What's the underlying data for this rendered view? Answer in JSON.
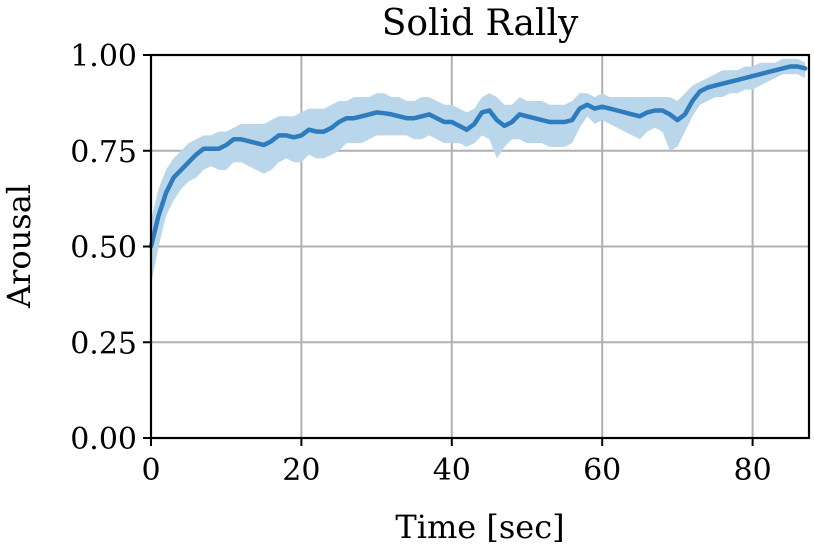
{
  "chart_data": {
    "type": "line",
    "title": "Solid Rally",
    "xlabel": "Time [sec]",
    "ylabel": "Arousal",
    "xlim": [
      0,
      87.5
    ],
    "ylim": [
      0,
      1
    ],
    "xticks": [
      0,
      20,
      40,
      60,
      80
    ],
    "xtick_labels": [
      "0",
      "20",
      "40",
      "60",
      "80"
    ],
    "yticks": [
      0,
      0.25,
      0.5,
      0.75,
      1.0
    ],
    "ytick_labels": [
      "0.00",
      "0.25",
      "0.50",
      "0.75",
      "1.00"
    ],
    "grid": true,
    "legend": "none",
    "series": [
      {
        "line_color": "#2e7bbd",
        "band_color": "#b9d6ea",
        "x": [
          0,
          1,
          2,
          3,
          4,
          5,
          6,
          7,
          8,
          9,
          10,
          11,
          12,
          13,
          14,
          15,
          16,
          17,
          18,
          19,
          20,
          21,
          22,
          23,
          24,
          25,
          26,
          27,
          28,
          29,
          30,
          31,
          32,
          33,
          34,
          35,
          36,
          37,
          38,
          39,
          40,
          41,
          42,
          43,
          44,
          45,
          46,
          47,
          48,
          49,
          50,
          51,
          52,
          53,
          54,
          55,
          56,
          57,
          58,
          59,
          60,
          61,
          62,
          63,
          64,
          65,
          66,
          67,
          68,
          69,
          70,
          71,
          72,
          73,
          74,
          75,
          76,
          77,
          78,
          79,
          80,
          81,
          82,
          83,
          84,
          85,
          86,
          87
        ],
        "mean": [
          0.5,
          0.58,
          0.64,
          0.68,
          0.7,
          0.72,
          0.74,
          0.755,
          0.755,
          0.755,
          0.765,
          0.78,
          0.78,
          0.775,
          0.77,
          0.765,
          0.775,
          0.79,
          0.79,
          0.785,
          0.79,
          0.805,
          0.8,
          0.8,
          0.81,
          0.825,
          0.835,
          0.835,
          0.84,
          0.845,
          0.85,
          0.848,
          0.845,
          0.84,
          0.835,
          0.835,
          0.84,
          0.845,
          0.835,
          0.825,
          0.825,
          0.815,
          0.805,
          0.82,
          0.85,
          0.855,
          0.83,
          0.815,
          0.825,
          0.845,
          0.84,
          0.835,
          0.83,
          0.825,
          0.825,
          0.825,
          0.83,
          0.86,
          0.87,
          0.86,
          0.865,
          0.86,
          0.855,
          0.85,
          0.845,
          0.84,
          0.85,
          0.855,
          0.855,
          0.845,
          0.83,
          0.845,
          0.88,
          0.905,
          0.915,
          0.92,
          0.925,
          0.93,
          0.935,
          0.94,
          0.945,
          0.95,
          0.955,
          0.96,
          0.965,
          0.97,
          0.97,
          0.965
        ],
        "lower": [
          0.4,
          0.5,
          0.58,
          0.62,
          0.65,
          0.67,
          0.68,
          0.7,
          0.71,
          0.7,
          0.7,
          0.72,
          0.72,
          0.71,
          0.7,
          0.69,
          0.7,
          0.72,
          0.73,
          0.72,
          0.72,
          0.74,
          0.73,
          0.73,
          0.74,
          0.75,
          0.77,
          0.77,
          0.77,
          0.78,
          0.79,
          0.79,
          0.79,
          0.79,
          0.79,
          0.78,
          0.78,
          0.79,
          0.78,
          0.77,
          0.77,
          0.77,
          0.76,
          0.77,
          0.79,
          0.78,
          0.73,
          0.76,
          0.78,
          0.78,
          0.77,
          0.77,
          0.77,
          0.76,
          0.76,
          0.76,
          0.77,
          0.81,
          0.84,
          0.82,
          0.83,
          0.82,
          0.81,
          0.8,
          0.79,
          0.78,
          0.8,
          0.81,
          0.8,
          0.75,
          0.76,
          0.8,
          0.84,
          0.87,
          0.88,
          0.89,
          0.89,
          0.9,
          0.9,
          0.91,
          0.91,
          0.92,
          0.93,
          0.94,
          0.95,
          0.95,
          0.95,
          0.94
        ],
        "upper": [
          0.57,
          0.65,
          0.7,
          0.73,
          0.75,
          0.77,
          0.78,
          0.79,
          0.79,
          0.8,
          0.8,
          0.81,
          0.82,
          0.82,
          0.82,
          0.82,
          0.83,
          0.84,
          0.84,
          0.84,
          0.85,
          0.86,
          0.86,
          0.86,
          0.87,
          0.88,
          0.88,
          0.89,
          0.89,
          0.89,
          0.9,
          0.9,
          0.89,
          0.89,
          0.88,
          0.88,
          0.89,
          0.89,
          0.88,
          0.87,
          0.87,
          0.86,
          0.85,
          0.86,
          0.89,
          0.9,
          0.89,
          0.87,
          0.87,
          0.89,
          0.88,
          0.88,
          0.88,
          0.87,
          0.87,
          0.87,
          0.88,
          0.9,
          0.9,
          0.89,
          0.9,
          0.89,
          0.89,
          0.89,
          0.89,
          0.89,
          0.89,
          0.89,
          0.89,
          0.89,
          0.88,
          0.9,
          0.92,
          0.93,
          0.94,
          0.95,
          0.96,
          0.96,
          0.96,
          0.97,
          0.97,
          0.98,
          0.98,
          0.98,
          0.99,
          0.99,
          0.99,
          0.98
        ]
      }
    ]
  }
}
